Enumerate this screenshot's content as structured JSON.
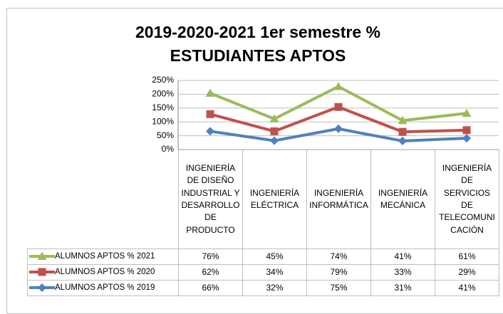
{
  "chart_data": {
    "type": "stacked_line",
    "title": "2019-2020-2021  1er semestre  %",
    "subtitle": "ESTUDIANTES APTOS",
    "categories": [
      "INGENIERÍA DE DISEÑO INDUSTRIAL Y DESARROLLO DE PRODUCTO",
      "INGENIERÍA ELÉCTRICA",
      "INGENIERÍA INFORMÁTICA",
      "INGENIERÍA MECÁNICA",
      "INGENIERÍA DE SERVICIOS DE TELECOMUNICACIÓN"
    ],
    "series": [
      {
        "name": "ALUMNOS APTOS % 2019",
        "color": "#4f81bd",
        "marker": "diamond",
        "values": [
          66,
          32,
          75,
          31,
          41
        ],
        "value_labels": [
          "66%",
          "32%",
          "75%",
          "31%",
          "41%"
        ]
      },
      {
        "name": "ALUMNOS APTOS % 2020",
        "color": "#c0504d",
        "marker": "square",
        "values": [
          62,
          34,
          79,
          33,
          29
        ],
        "value_labels": [
          "62%",
          "34%",
          "79%",
          "33%",
          "29%"
        ]
      },
      {
        "name": "ALUMNOS APTOS % 2021",
        "color": "#9bbb59",
        "marker": "triangle",
        "values": [
          76,
          45,
          74,
          41,
          61
        ],
        "value_labels": [
          "76%",
          "45%",
          "74%",
          "41%",
          "61%"
        ]
      }
    ],
    "ylim": [
      0,
      250
    ],
    "yticks": [
      {
        "value": 0,
        "label": "0%"
      },
      {
        "value": 50,
        "label": "50%"
      },
      {
        "value": 100,
        "label": "100%"
      },
      {
        "value": 150,
        "label": "150%"
      },
      {
        "value": 200,
        "label": "200%"
      },
      {
        "value": 250,
        "label": "250%"
      }
    ],
    "grid": true
  }
}
